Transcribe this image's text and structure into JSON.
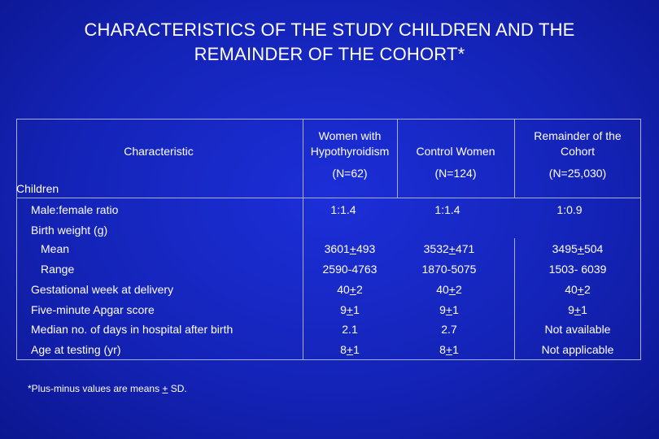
{
  "title": {
    "line1": "CHARACTERISTICS OF THE STUDY CHILDREN AND THE",
    "line2": "REMAINDER OF THE COHORT*"
  },
  "headers": {
    "characteristic": "Characteristic",
    "women_with": "Women with",
    "hypothyroidism": "Hypothyroidism",
    "control": "Control Women",
    "remainder_1": "Remainder of the",
    "remainder_2": "Cohort",
    "n1": "(N=62)",
    "n2": "(N=124)",
    "n3": "(N=25,030)"
  },
  "sections": {
    "children": "Children",
    "birth_weight": "Birth weight (g)"
  },
  "rows": [
    {
      "label": "Male:female ratio",
      "v1": "1:1.4",
      "v2": "1:1.4",
      "v3": "1:0.9"
    },
    {
      "label": "Mean",
      "v1a": "3601",
      "v1b": "+",
      "v1c": "493",
      "v2a": "3532",
      "v2b": "+",
      "v2c": "471",
      "v3a": "3495",
      "v3b": "+",
      "v3c": "504"
    },
    {
      "label": "Range",
      "v1": "2590-4763",
      "v2": "1870-5075",
      "v3": "1503- 6039"
    },
    {
      "label": "Gestational week at delivery",
      "v1a": "40",
      "v1b": "+",
      "v1c": "2",
      "v2a": "40",
      "v2b": "+",
      "v2c": "2",
      "v3a": "40",
      "v3b": "+",
      "v3c": "2"
    },
    {
      "label": "Five-minute Apgar score",
      "v1a": "9",
      "v1b": "+",
      "v1c": "1",
      "v2a": "9",
      "v2b": "+",
      "v2c": "1",
      "v3a": "9",
      "v3b": "+",
      "v3c": "1"
    },
    {
      "label": "Median no. of days in hospital after birth",
      "v1": "2.1",
      "v2": "2.7",
      "v3": "Not available"
    },
    {
      "label": "Age at testing (yr)",
      "v1a": "8",
      "v1b": "+",
      "v1c": "1",
      "v2a": "8",
      "v2b": "+",
      "v2c": "1",
      "v3": "Not applicable"
    }
  ],
  "footnote": {
    "a": "*Plus-minus values are means ",
    "b": "+",
    "c": " SD."
  }
}
